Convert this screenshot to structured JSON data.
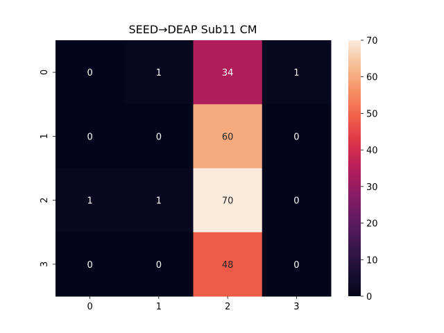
{
  "chart_data": {
    "type": "heatmap",
    "title": "SEED→DEAP Sub11 CM",
    "xlabel": "",
    "ylabel": "",
    "x_categories": [
      "0",
      "1",
      "2",
      "3"
    ],
    "y_categories": [
      "0",
      "1",
      "2",
      "3"
    ],
    "values": [
      [
        0,
        1,
        34,
        1
      ],
      [
        0,
        0,
        60,
        0
      ],
      [
        1,
        1,
        70,
        0
      ],
      [
        0,
        0,
        48,
        0
      ]
    ],
    "colorbar": {
      "min": 0,
      "max": 70,
      "ticks": [
        0,
        10,
        20,
        30,
        40,
        50,
        60,
        70
      ],
      "colormap": "rocket"
    },
    "annotations": true
  }
}
